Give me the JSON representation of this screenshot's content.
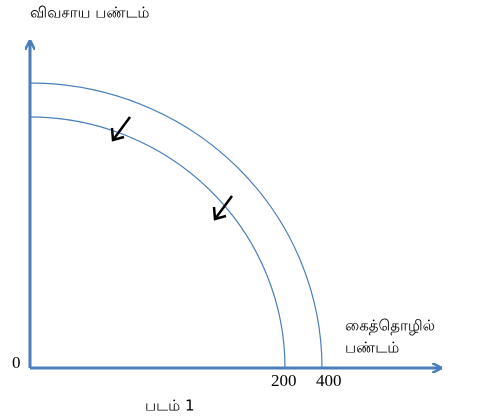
{
  "y_axis_label": "விவசாய பண்டம்",
  "x_axis_label": [
    "கைத்தொழில்",
    "பண்டம்"
  ],
  "origin_label": 0,
  "x_labels": [
    200,
    400
  ],
  "caption": "படம் 1"
}
